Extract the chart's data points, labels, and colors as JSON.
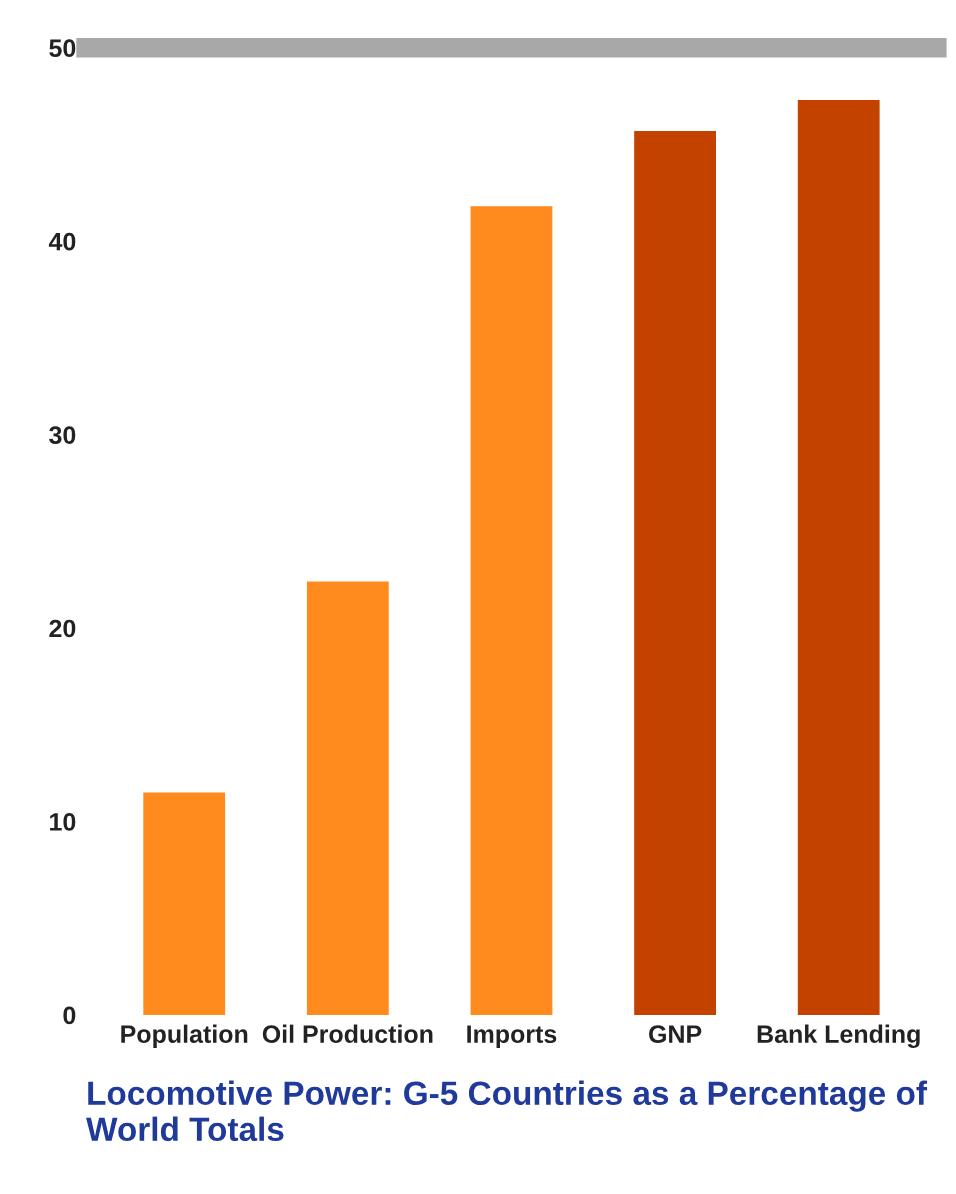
{
  "chart_data": {
    "type": "bar",
    "title": "Locomotive Power: G-5 Countries as a Percentage of World Totals",
    "categories": [
      "Population",
      "Oil Production",
      "Imports",
      "GNP",
      "Bank Lending"
    ],
    "values": [
      11.5,
      22.4,
      41.8,
      45.7,
      47.3
    ],
    "colors": [
      "#ff8a1e",
      "#ff8a1e",
      "#ff8a1e",
      "#c44200",
      "#c44200"
    ],
    "ylim": [
      0,
      50
    ],
    "yticks": [
      0,
      10,
      20,
      30,
      40,
      50
    ],
    "grid": false,
    "legend": false,
    "ref_lines": [
      {
        "axis": "y",
        "value": 50,
        "color": "#a8a8a8"
      }
    ]
  }
}
